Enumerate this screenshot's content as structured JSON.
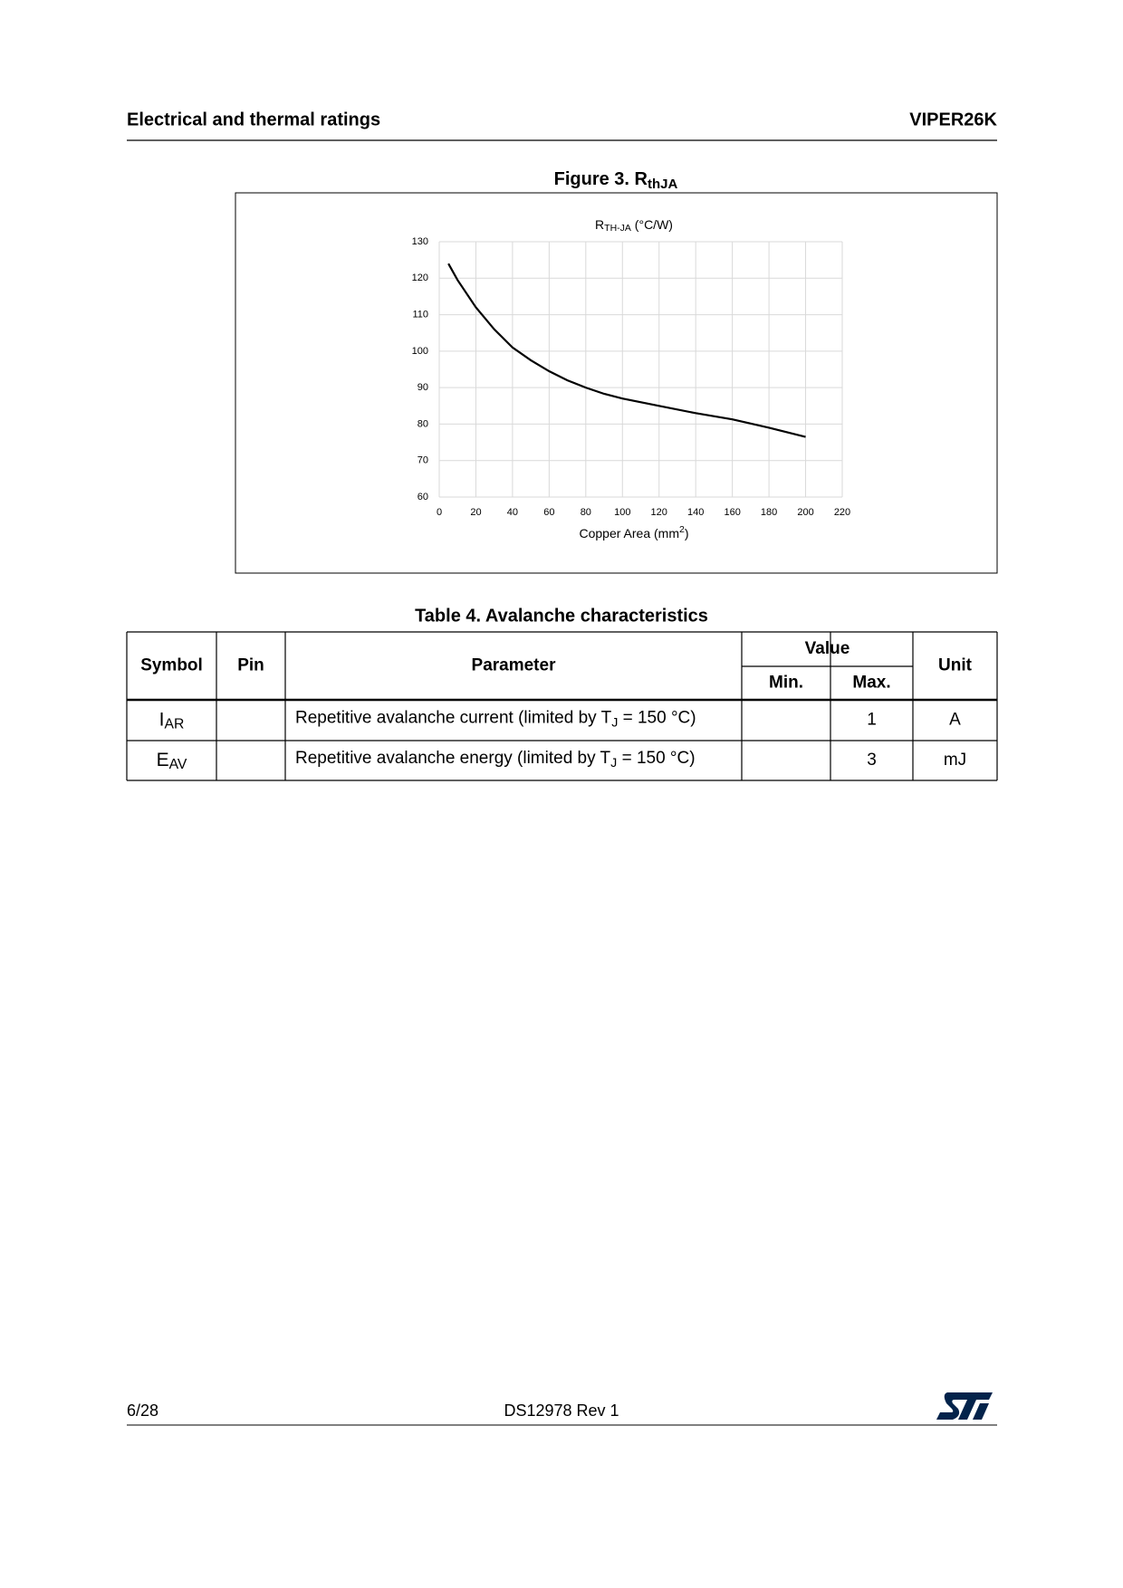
{
  "header": {
    "left": "Electrical and thermal ratings",
    "right": "VIPER26K"
  },
  "figure": {
    "caption": "Figure 3. R",
    "caption_sub": "thJA"
  },
  "chart_data": {
    "type": "line",
    "title": "R",
    "title_sub": "TH-JA",
    "title_unit": " (°C/W)",
    "x_label": "Copper Area (mm",
    "x_label_sup": "2",
    "x_label_end": ")",
    "x": [
      5,
      10,
      20,
      30,
      40,
      50,
      60,
      70,
      80,
      90,
      100,
      120,
      140,
      160,
      180,
      200
    ],
    "values": [
      124,
      119.5,
      112,
      106,
      101,
      97.5,
      94.5,
      92,
      90,
      88.3,
      87,
      85,
      83,
      81.3,
      79,
      76.5
    ],
    "color": "#000000",
    "xlim": [
      0,
      220
    ],
    "xticks": [
      0,
      20,
      40,
      60,
      80,
      100,
      120,
      140,
      160,
      180,
      200,
      220
    ],
    "ylim": [
      60,
      130
    ],
    "yticks": [
      60,
      70,
      80,
      90,
      100,
      110,
      120,
      130
    ],
    "grid": true
  },
  "table": {
    "caption": "Table 4. Avalanche characteristics",
    "headers": {
      "symbol": "Symbol",
      "pin": "Pin",
      "parameter": "Parameter",
      "value": "Value",
      "min": "Min.",
      "max": "Max.",
      "unit": "Unit"
    },
    "rows": [
      {
        "symbol": "I",
        "symbol_sub": "AR",
        "parameter": "Repetitive avalanche current (limited by T",
        "parameter_sub": "J",
        "parameter_end": " = 150 °C)",
        "max": 1,
        "unit": "A"
      },
      {
        "symbol": "E",
        "symbol_sub": "AV",
        "parameter": "Repetitive avalanche energy (limited by T",
        "parameter_sub": "J",
        "parameter_end": " = 150 °C)",
        "max": 3,
        "unit": "mJ"
      }
    ]
  },
  "footer": {
    "page": "6/28",
    "doc": "DS12978 Rev 1"
  }
}
